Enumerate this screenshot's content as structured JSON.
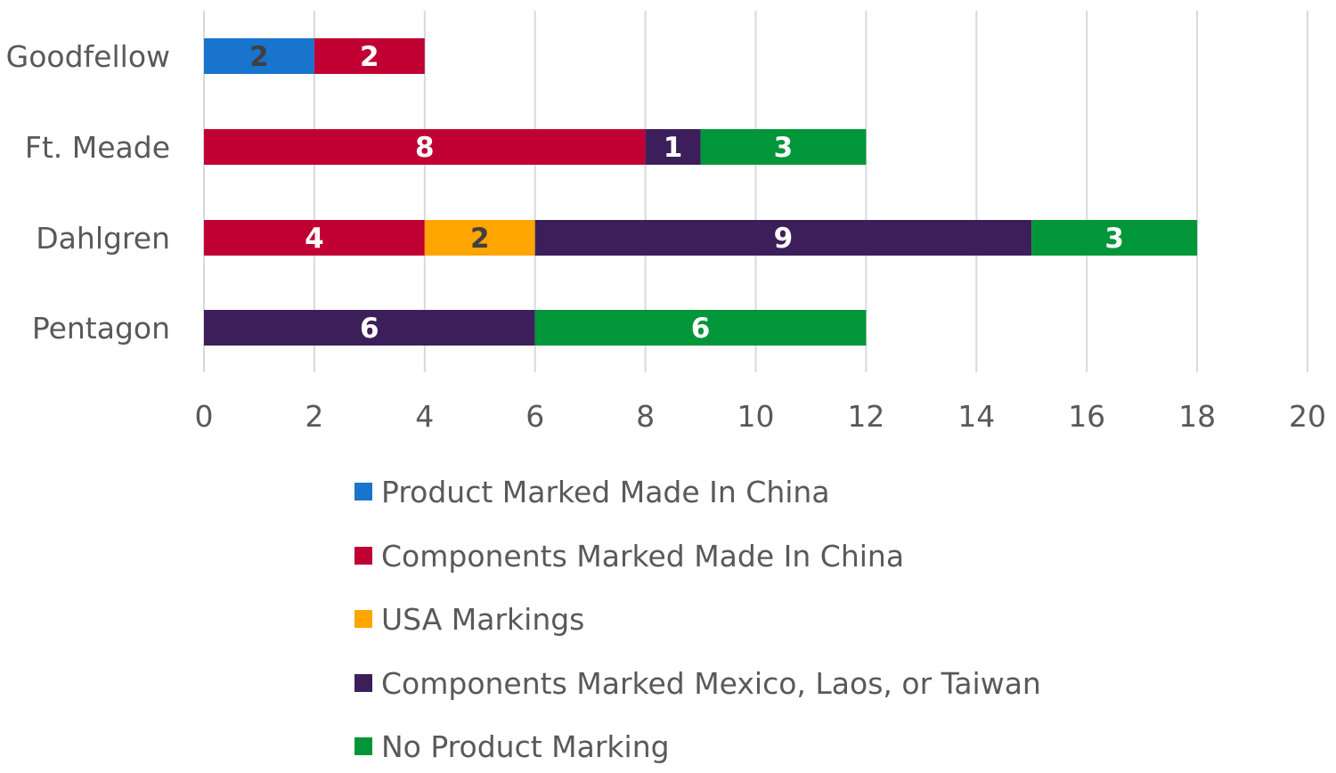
{
  "chart_data": {
    "type": "bar",
    "orientation": "horizontal",
    "stacked": true,
    "categories": [
      "Goodfellow",
      "Ft. Meade",
      "Dahlgren",
      "Pentagon"
    ],
    "series": [
      {
        "name": "Product Marked Made In China",
        "color": "#1874CD",
        "values": [
          2,
          0,
          0,
          0
        ]
      },
      {
        "name": "Components Marked Made In China",
        "color": "#C00033",
        "values": [
          2,
          8,
          4,
          0
        ]
      },
      {
        "name": "USA Markings",
        "color": "#FFA500",
        "values": [
          0,
          0,
          2,
          0
        ]
      },
      {
        "name": "Components Marked Mexico, Laos, or Taiwan",
        "color": "#3C1F5A",
        "values": [
          0,
          1,
          9,
          6
        ]
      },
      {
        "name": "No Product Marking",
        "color": "#009639",
        "values": [
          0,
          3,
          3,
          6
        ]
      }
    ],
    "xlim": [
      0,
      20
    ],
    "x_ticks": [
      "0",
      "2",
      "4",
      "6",
      "8",
      "10",
      "12",
      "14",
      "16",
      "18",
      "20"
    ],
    "grid": "vertical",
    "legend_position": "bottom"
  }
}
